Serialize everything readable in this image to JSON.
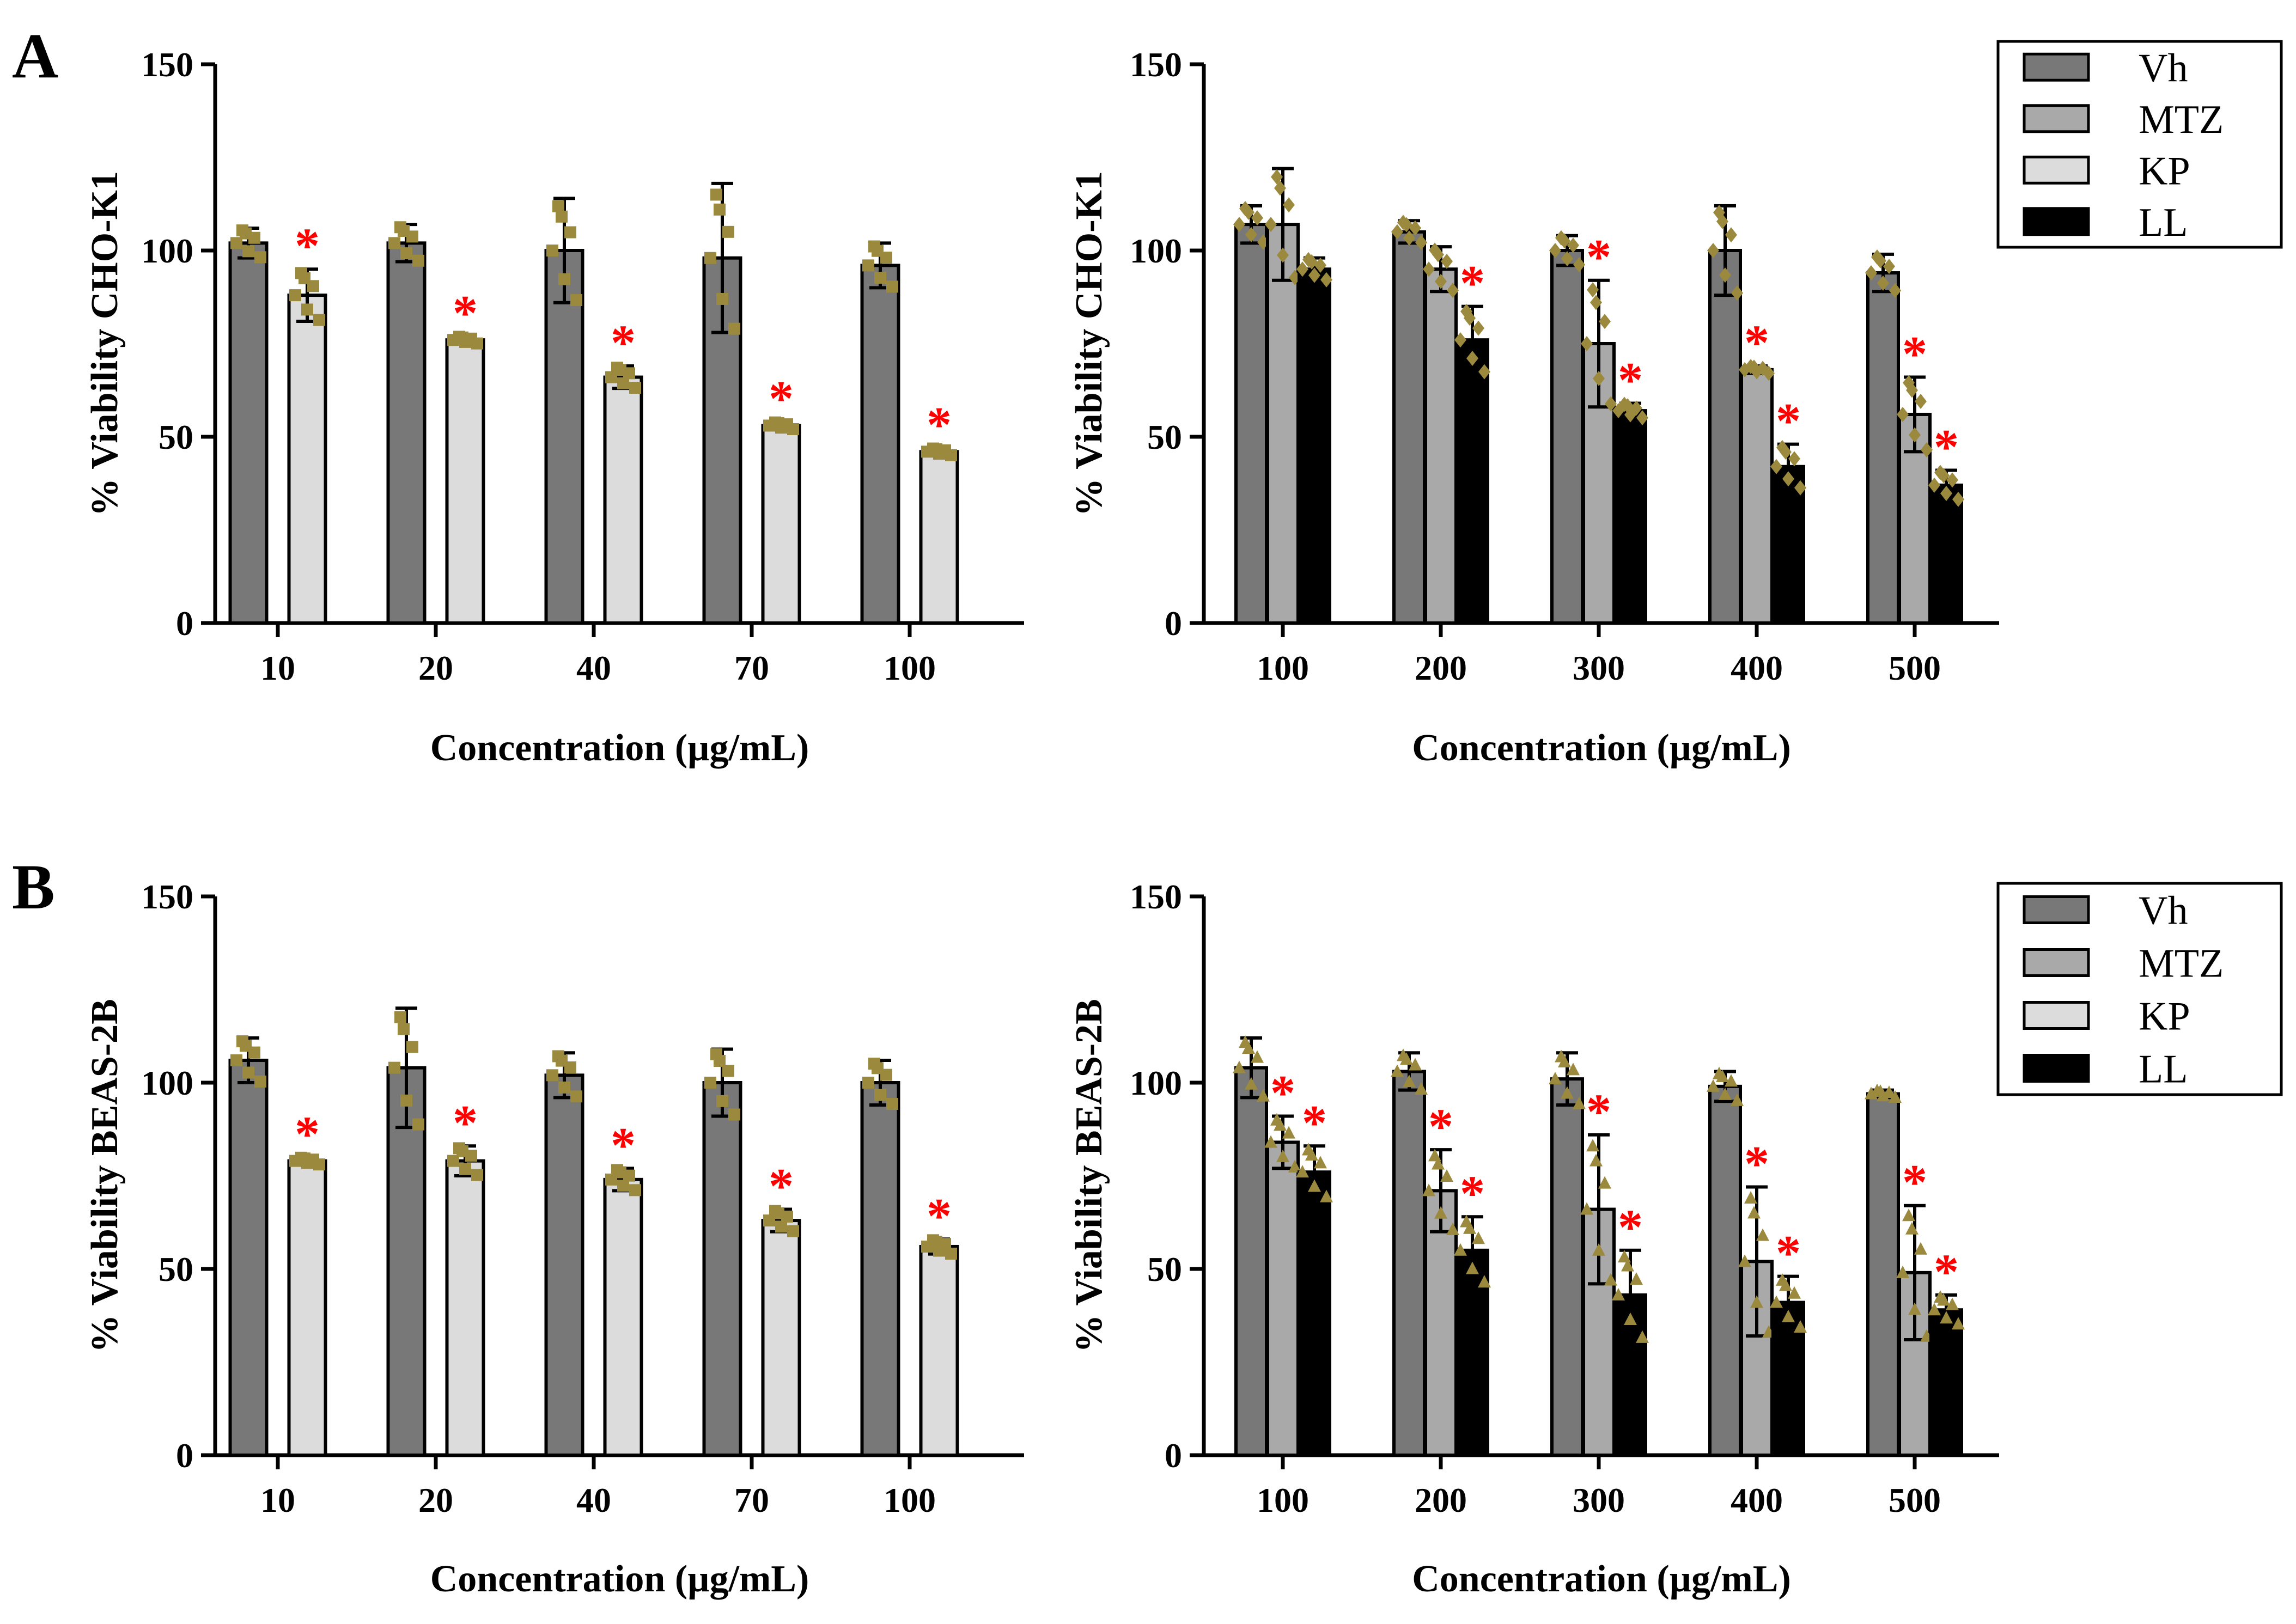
{
  "panel_labels": [
    "A",
    "B"
  ],
  "legend": [
    "Vh",
    "MTZ",
    "KP",
    "LL"
  ],
  "colors": {
    "Vh": "#787878",
    "MTZ": "#a9a9a9",
    "KP": "#dcdcdc",
    "LL": "#000000",
    "points": "#9b8a3e",
    "significance": "#ff0000"
  },
  "chart_data": [
    {
      "panel": "A",
      "type": "bar",
      "title": "",
      "xlabel": "Concentration (µg/mL)",
      "ylabel": "% Viability CHO-K1",
      "ylim": [
        0,
        150
      ],
      "yticks": [
        0,
        50,
        100,
        150
      ],
      "categories": [
        "10",
        "20",
        "40",
        "70",
        "100"
      ],
      "point_marker": "square",
      "series": [
        {
          "name": "Vh",
          "values": [
            102,
            102,
            100,
            98,
            96
          ],
          "errors": [
            4,
            5,
            14,
            20,
            6
          ],
          "significant": [
            false,
            false,
            false,
            false,
            false
          ]
        },
        {
          "name": "KP",
          "values": [
            88,
            76,
            66,
            53,
            46
          ],
          "errors": [
            7,
            1,
            3,
            1,
            1
          ],
          "significant": [
            true,
            true,
            true,
            true,
            true
          ]
        }
      ]
    },
    {
      "panel": "A",
      "type": "bar",
      "title": "",
      "xlabel": "Concentration (µg/mL)",
      "ylabel": "% Viability CHO-K1",
      "ylim": [
        0,
        150
      ],
      "yticks": [
        0,
        50,
        100,
        150
      ],
      "categories": [
        "100",
        "200",
        "300",
        "400",
        "500"
      ],
      "point_marker": "diamond",
      "legend": [
        "Vh",
        "MTZ",
        "KP",
        "LL"
      ],
      "series": [
        {
          "name": "Vh",
          "values": [
            107,
            105,
            100,
            100,
            94
          ],
          "errors": [
            5,
            3,
            4,
            12,
            5
          ],
          "significant": [
            false,
            false,
            false,
            false,
            false
          ]
        },
        {
          "name": "MTZ",
          "values": [
            107,
            95,
            75,
            68,
            56
          ],
          "errors": [
            15,
            6,
            17,
            1,
            10
          ],
          "significant": [
            false,
            false,
            true,
            true,
            true
          ]
        },
        {
          "name": "LL",
          "values": [
            95,
            76,
            57,
            42,
            37
          ],
          "errors": [
            3,
            9,
            2,
            6,
            4
          ],
          "significant": [
            false,
            true,
            true,
            true,
            true
          ]
        }
      ]
    },
    {
      "panel": "B",
      "type": "bar",
      "title": "",
      "xlabel": "Concentration (µg/mL)",
      "ylabel": "% Viability BEAS-2B",
      "ylim": [
        0,
        150
      ],
      "yticks": [
        0,
        50,
        100,
        150
      ],
      "categories": [
        "10",
        "20",
        "40",
        "70",
        "100"
      ],
      "point_marker": "square",
      "series": [
        {
          "name": "Vh",
          "values": [
            106,
            104,
            102,
            100,
            100
          ],
          "errors": [
            6,
            16,
            6,
            9,
            6
          ],
          "significant": [
            false,
            false,
            false,
            false,
            false
          ]
        },
        {
          "name": "KP",
          "values": [
            79,
            79,
            74,
            63,
            56
          ],
          "errors": [
            1,
            4,
            3,
            3,
            2
          ],
          "significant": [
            true,
            true,
            true,
            true,
            true
          ]
        }
      ]
    },
    {
      "panel": "B",
      "type": "bar",
      "title": "",
      "xlabel": "Concentration (µg/mL)",
      "ylabel": "% Viability BEAS-2B",
      "ylim": [
        0,
        150
      ],
      "yticks": [
        0,
        50,
        100,
        150
      ],
      "categories": [
        "100",
        "200",
        "300",
        "400",
        "500"
      ],
      "point_marker": "triangle",
      "legend": [
        "Vh",
        "MTZ",
        "KP",
        "LL"
      ],
      "series": [
        {
          "name": "Vh",
          "values": [
            104,
            103,
            101,
            99,
            97
          ],
          "errors": [
            8,
            5,
            7,
            4,
            1
          ],
          "significant": [
            false,
            false,
            false,
            false,
            false
          ]
        },
        {
          "name": "MTZ",
          "values": [
            84,
            71,
            66,
            52,
            49
          ],
          "errors": [
            7,
            11,
            20,
            20,
            18
          ],
          "significant": [
            true,
            true,
            true,
            true,
            true
          ]
        },
        {
          "name": "LL",
          "values": [
            76,
            55,
            43,
            41,
            39
          ],
          "errors": [
            7,
            9,
            12,
            7,
            4
          ],
          "significant": [
            true,
            true,
            true,
            true,
            true
          ]
        }
      ]
    }
  ]
}
